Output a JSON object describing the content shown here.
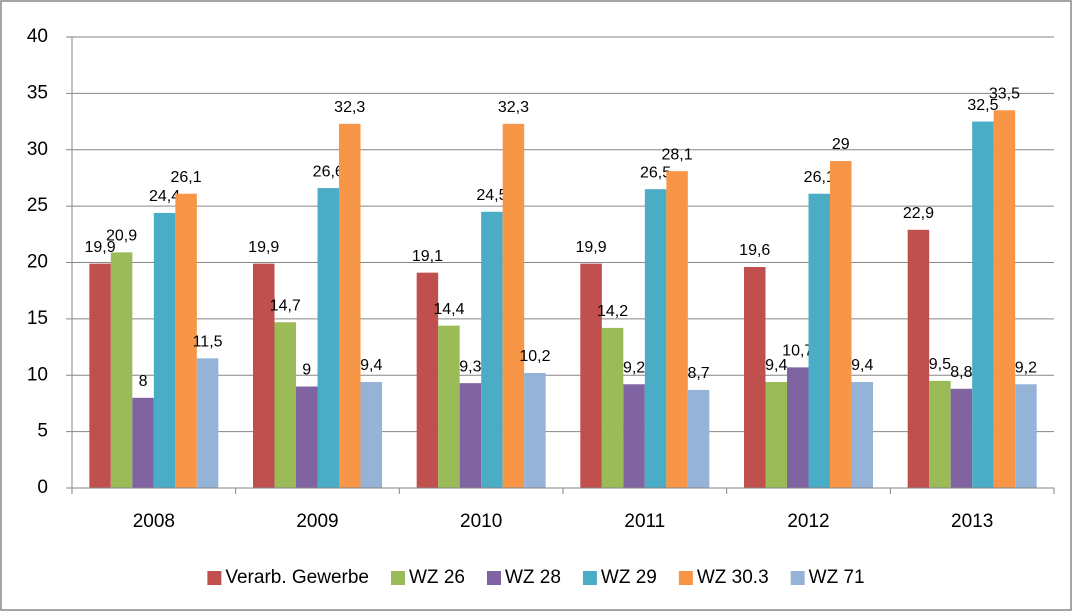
{
  "chart_data": {
    "type": "bar",
    "categories": [
      "2008",
      "2009",
      "2010",
      "2011",
      "2012",
      "2013"
    ],
    "series": [
      {
        "name": "Verarb. Gewerbe",
        "color": "#c0504d",
        "values": [
          19.9,
          19.9,
          19.1,
          19.9,
          19.6,
          22.9
        ],
        "value_labels": [
          "19,9",
          "19,9",
          "19,1",
          "19,9",
          "19,6",
          "22,9"
        ]
      },
      {
        "name": "WZ 26",
        "color": "#9bbb59",
        "values": [
          20.9,
          14.7,
          14.4,
          14.2,
          9.4,
          9.5
        ],
        "value_labels": [
          "20,9",
          "14,7",
          "14,4",
          "14,2",
          "9,4",
          "9,5"
        ]
      },
      {
        "name": "WZ 28",
        "color": "#8064a2",
        "values": [
          8,
          9,
          9.3,
          9.2,
          10.7,
          8.8
        ],
        "value_labels": [
          "8",
          "9",
          "9,3",
          "9,2",
          "10,7",
          "8,8"
        ]
      },
      {
        "name": "WZ 29",
        "color": "#4bacc6",
        "values": [
          24.4,
          26.6,
          24.5,
          26.5,
          26.1,
          32.5
        ],
        "value_labels": [
          "24,4",
          "26,6",
          "24,5",
          "26,5",
          "26,1",
          "32,5"
        ]
      },
      {
        "name": "WZ 30.3",
        "color": "#f79646",
        "values": [
          26.1,
          32.3,
          32.3,
          28.1,
          29,
          33.5
        ],
        "value_labels": [
          "26,1",
          "32,3",
          "32,3",
          "28,1",
          "29",
          "33,5"
        ]
      },
      {
        "name": "WZ 71",
        "color": "#95b3d7",
        "values": [
          11.5,
          9.4,
          10.2,
          8.7,
          9.4,
          9.2
        ],
        "value_labels": [
          "11,5",
          "9,4",
          "10,2",
          "8,7",
          "9,4",
          "9,2"
        ]
      }
    ],
    "ylim": [
      0,
      40
    ],
    "yticks": [
      0,
      5,
      10,
      15,
      20,
      25,
      30,
      35,
      40
    ],
    "grid": true,
    "legend": "bottom"
  }
}
